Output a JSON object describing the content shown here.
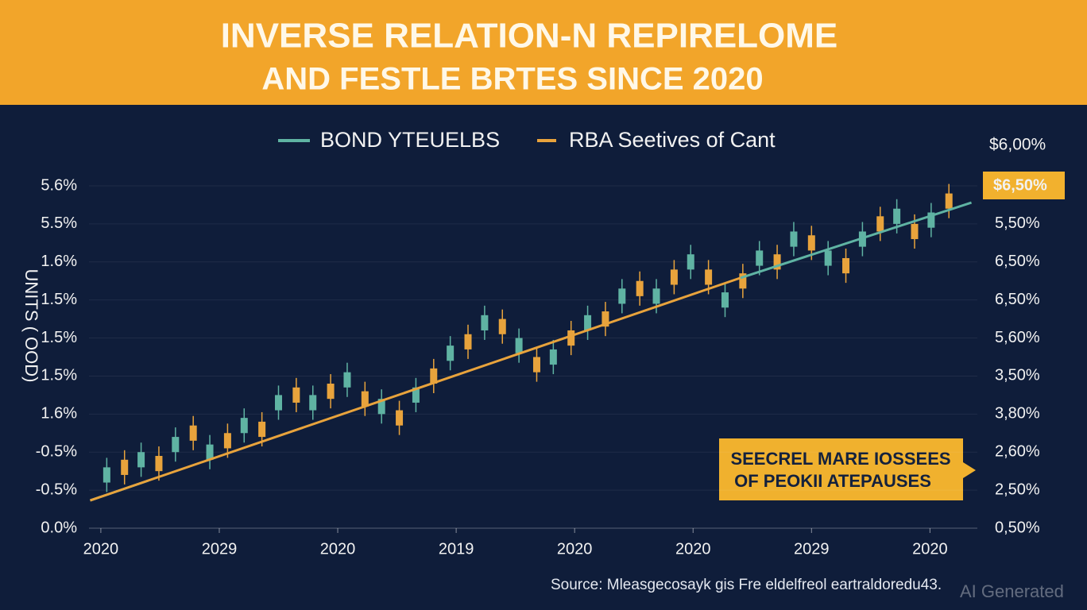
{
  "chart_data": {
    "type": "candlestick",
    "title": [
      "INVERSE RELATION-N REPIRELOME",
      "AND FESTLE BRTES SINCE 2020"
    ],
    "y_label": "UNITS ( OOD)",
    "y2_label": "$6,00%",
    "annotation": [
      "SEECREL MARE IOSSEES",
      "OF PEOKII ATEPAUSES"
    ],
    "source": "Source: Mleasgecosayk gis Fre eldelfreol eartraldoredu43.",
    "watermark": "AI Generated",
    "xlim": [
      -0.1,
      7.4
    ],
    "xticks": [
      {
        "value": 0,
        "label": "2020"
      },
      {
        "value": 1,
        "label": "2029"
      },
      {
        "value": 2,
        "label": "2020"
      },
      {
        "value": 3,
        "label": "2019"
      },
      {
        "value": 4,
        "label": "2020"
      },
      {
        "value": 5,
        "label": "2020"
      },
      {
        "value": 6,
        "label": "2029"
      },
      {
        "value": 7,
        "label": "2020"
      }
    ],
    "ylim": [
      0,
      9
    ],
    "yticks": [
      {
        "value": 0,
        "label": "0.0%"
      },
      {
        "value": 1,
        "label": "-0.5%"
      },
      {
        "value": 2,
        "label": "-0.5%"
      },
      {
        "value": 3,
        "label": "1.6%"
      },
      {
        "value": 4,
        "label": "1.5%"
      },
      {
        "value": 5,
        "label": "1.5%"
      },
      {
        "value": 6,
        "label": "1.5%"
      },
      {
        "value": 7,
        "label": "1.6%"
      },
      {
        "value": 8,
        "label": "5.5%"
      },
      {
        "value": 9,
        "label": "5.6%"
      }
    ],
    "y2lim": [
      0,
      9
    ],
    "y2ticks": [
      {
        "value": 0,
        "label": "0,50%"
      },
      {
        "value": 1,
        "label": "2,50%"
      },
      {
        "value": 2,
        "label": "2,60%"
      },
      {
        "value": 3,
        "label": "3,80%"
      },
      {
        "value": 4,
        "label": "3,50%"
      },
      {
        "value": 5,
        "label": "5,60%"
      },
      {
        "value": 6,
        "label": "6,50%"
      },
      {
        "value": 7,
        "label": "6,50%"
      },
      {
        "value": 8,
        "label": "5,50%"
      },
      {
        "value": 9,
        "label": "$6,50%"
      }
    ],
    "grid": true,
    "legend": "top",
    "series": [
      {
        "name": "BOND YTEUELBS",
        "type": "line",
        "color": "#5fb3a3",
        "x": [
          -0.09,
          0.4,
          4.9,
          5.4,
          7.35
        ],
        "values": [
          0.73,
          1.25,
          null,
          6.58,
          8.56
        ]
      },
      {
        "name": "RBA Seetives of Cant",
        "type": "line",
        "color": "#e8a33c",
        "x": [
          -0.09,
          5.4
        ],
        "values": [
          0.73,
          6.58
        ]
      }
    ],
    "candles": {
      "up_color": "#5fb3a3",
      "down_color": "#e8a33c",
      "x": [
        0.05,
        0.2,
        0.34,
        0.49,
        0.63,
        0.78,
        0.92,
        1.07,
        1.21,
        1.36,
        1.5,
        1.65,
        1.79,
        1.94,
        2.08,
        2.23,
        2.37,
        2.52,
        2.66,
        2.81,
        2.95,
        3.1,
        3.24,
        3.39,
        3.53,
        3.68,
        3.82,
        3.97,
        4.11,
        4.26,
        4.4,
        4.55,
        4.69,
        4.84,
        4.98,
        5.13,
        5.27,
        5.42,
        5.56,
        5.71,
        5.85,
        6.0,
        6.14,
        6.29,
        6.43,
        6.58,
        6.72,
        6.87,
        7.01,
        7.16
      ],
      "open": [
        1.2,
        1.8,
        1.6,
        1.9,
        2.0,
        2.7,
        1.8,
        2.5,
        2.5,
        2.8,
        3.1,
        3.7,
        3.1,
        3.8,
        3.7,
        3.6,
        3.0,
        3.1,
        3.3,
        4.2,
        4.4,
        5.1,
        5.2,
        5.5,
        4.6,
        4.5,
        4.3,
        5.2,
        5.2,
        5.7,
        5.9,
        6.5,
        5.9,
        6.8,
        6.8,
        6.8,
        5.8,
        6.7,
        6.9,
        7.2,
        7.4,
        7.7,
        6.9,
        7.1,
        7.4,
        8.2,
        8.0,
        8.0,
        7.9,
        8.8
      ],
      "close": [
        1.6,
        1.4,
        2.0,
        1.5,
        2.4,
        2.3,
        2.2,
        2.1,
        2.9,
        2.4,
        3.5,
        3.3,
        3.5,
        3.4,
        4.1,
        3.2,
        3.4,
        2.7,
        3.7,
        3.8,
        4.8,
        4.7,
        5.6,
        5.1,
        5.0,
        4.1,
        4.7,
        4.8,
        5.6,
        5.3,
        6.3,
        6.1,
        6.3,
        6.4,
        7.2,
        6.4,
        6.2,
        6.3,
        7.3,
        6.8,
        7.8,
        7.3,
        7.3,
        6.7,
        7.8,
        7.8,
        8.4,
        7.6,
        8.3,
        8.4
      ],
      "high": [
        1.85,
        2.05,
        2.25,
        2.15,
        2.65,
        2.95,
        2.45,
        2.75,
        3.15,
        3.05,
        3.75,
        3.95,
        3.75,
        4.05,
        4.35,
        3.85,
        3.65,
        3.35,
        3.95,
        4.45,
        5.05,
        5.35,
        5.85,
        5.75,
        5.25,
        4.75,
        4.95,
        5.45,
        5.85,
        5.95,
        6.55,
        6.75,
        6.55,
        7.05,
        7.45,
        7.05,
        6.45,
        6.95,
        7.55,
        7.45,
        8.05,
        7.95,
        7.55,
        7.35,
        8.05,
        8.45,
        8.65,
        8.25,
        8.55,
        9.05
      ],
      "low": [
        0.95,
        1.15,
        1.35,
        1.25,
        1.75,
        2.05,
        1.55,
        1.85,
        2.25,
        2.15,
        2.85,
        3.05,
        2.85,
        3.15,
        3.45,
        2.95,
        2.75,
        2.45,
        3.05,
        3.55,
        4.15,
        4.45,
        4.95,
        4.85,
        4.35,
        3.85,
        4.05,
        4.55,
        4.95,
        5.05,
        5.65,
        5.85,
        5.65,
        6.15,
        6.55,
        6.15,
        5.55,
        6.05,
        6.65,
        6.55,
        7.15,
        7.05,
        6.65,
        6.45,
        7.15,
        7.55,
        7.75,
        7.35,
        7.65,
        8.15
      ]
    }
  }
}
